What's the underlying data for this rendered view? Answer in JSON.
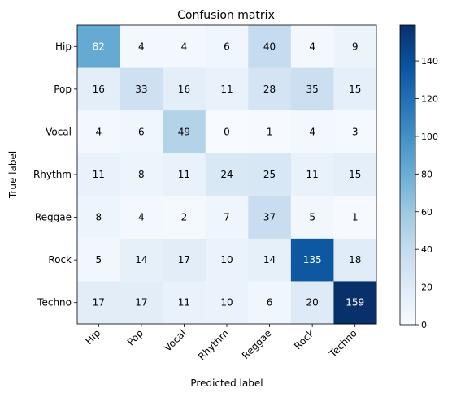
{
  "chart_data": {
    "type": "heatmap",
    "title": "Confusion matrix",
    "xlabel": "Predicted label",
    "ylabel": "True label",
    "x_categories": [
      "Hip",
      "Pop",
      "Vocal",
      "Rhythm",
      "Reggae",
      "Rock",
      "Techno"
    ],
    "y_categories": [
      "Hip",
      "Pop",
      "Vocal",
      "Rhythm",
      "Reggae",
      "Rock",
      "Techno"
    ],
    "values": [
      [
        82,
        4,
        4,
        6,
        40,
        4,
        9
      ],
      [
        16,
        33,
        16,
        11,
        28,
        35,
        15
      ],
      [
        4,
        6,
        49,
        0,
        1,
        4,
        3
      ],
      [
        11,
        8,
        11,
        24,
        25,
        11,
        15
      ],
      [
        8,
        4,
        2,
        7,
        37,
        5,
        1
      ],
      [
        5,
        14,
        17,
        10,
        14,
        135,
        18
      ],
      [
        17,
        17,
        11,
        10,
        6,
        20,
        159
      ]
    ],
    "colormap": "Blues",
    "vmin": 0,
    "vmax": 159,
    "colorbar_ticks": [
      "0",
      "20",
      "40",
      "60",
      "80",
      "100",
      "120",
      "140"
    ],
    "grid": false
  }
}
